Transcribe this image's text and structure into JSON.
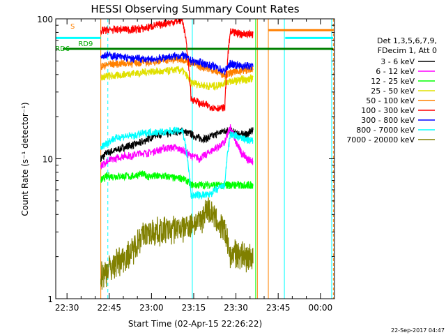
{
  "chart_data": {
    "type": "line",
    "title": "HESSI Observing Summary Count Rates",
    "xlabel": "Start Time (02-Apr-15 22:26:22)",
    "ylabel": "Count Rate (s⁻¹ detector⁻¹)",
    "y_scale": "log",
    "ylim": [
      1,
      100
    ],
    "xlim_minutes_after_2230": [
      -4,
      95
    ],
    "x_tick_labels": [
      "22:30",
      "22:45",
      "23:00",
      "23:15",
      "23:30",
      "23:45",
      "00:00"
    ],
    "x_tick_minutes": [
      0,
      15,
      30,
      45,
      60,
      75,
      90
    ],
    "y_tick_labels": [
      "1",
      "10",
      "100"
    ],
    "y_tick_values": [
      1,
      10,
      100
    ],
    "legend_header": [
      "Det 1,3,5,6,7,9,",
      "FDecim 1, Att 0"
    ],
    "legend_placement": "right",
    "series": [
      {
        "name": "3 - 6 keV",
        "color": "#000000",
        "x": [
          12,
          14,
          17,
          20,
          23,
          26,
          29,
          32,
          35,
          38,
          41,
          44,
          47,
          50,
          53,
          56,
          58,
          60,
          62,
          64,
          66
        ],
        "y": [
          10,
          11,
          11.5,
          12,
          12.5,
          13,
          14,
          15,
          15,
          15.5,
          16,
          15,
          14,
          14,
          15,
          16,
          16,
          15,
          15,
          15,
          16
        ]
      },
      {
        "name": "6 - 12 keV",
        "color": "#ff00ff",
        "x": [
          12,
          14,
          17,
          20,
          23,
          26,
          29,
          32,
          35,
          38,
          41,
          44,
          47,
          50,
          53,
          56,
          58,
          60,
          62,
          64,
          66
        ],
        "y": [
          9,
          9.5,
          10,
          10.5,
          10.5,
          11,
          11,
          11.5,
          12,
          12,
          11.5,
          10.5,
          10,
          11,
          12,
          13,
          17,
          13,
          11,
          10,
          9.5
        ]
      },
      {
        "name": "12 - 25 keV",
        "color": "#00ff00",
        "x": [
          12,
          14,
          17,
          20,
          23,
          26,
          29,
          32,
          35,
          38,
          41,
          44,
          47,
          50,
          53,
          56,
          58,
          60,
          62,
          64,
          66
        ],
        "y": [
          7,
          7.5,
          7.5,
          7.5,
          7.5,
          7.8,
          7.5,
          7.5,
          7.5,
          7.3,
          7.3,
          6.5,
          6.5,
          6.5,
          6.5,
          6.5,
          6.5,
          6.5,
          6.5,
          6.5,
          6.5
        ]
      },
      {
        "name": "25 - 50 keV",
        "color": "#e0e000",
        "x": [
          12,
          14,
          17,
          20,
          23,
          26,
          29,
          32,
          35,
          38,
          41,
          44,
          47,
          50,
          53,
          56,
          58,
          60,
          62,
          64,
          66
        ],
        "y": [
          38,
          39,
          39,
          40,
          41,
          41,
          42,
          42,
          42,
          43,
          43,
          35,
          34,
          33,
          33,
          35,
          36,
          36,
          37,
          37,
          38
        ]
      },
      {
        "name": "50 - 100 keV",
        "color": "#ff8000",
        "x": [
          12,
          14,
          17,
          20,
          23,
          26,
          29,
          32,
          35,
          38,
          41,
          44,
          47,
          50,
          53,
          56,
          58,
          60,
          62,
          64,
          66
        ],
        "y": [
          46,
          47,
          48,
          48,
          48,
          49,
          49,
          50,
          51,
          51,
          52,
          48,
          46,
          44,
          42,
          40,
          41,
          42,
          43,
          43,
          44
        ]
      },
      {
        "name": "100 - 300 keV",
        "color": "#ff0000",
        "x": [
          12,
          14,
          17,
          20,
          23,
          26,
          29,
          32,
          35,
          38,
          41,
          44,
          47,
          50,
          53,
          56,
          58,
          60,
          62,
          64,
          66
        ],
        "y": [
          82,
          83,
          84,
          84,
          84,
          85,
          87,
          90,
          93,
          95,
          98,
          27,
          25,
          24,
          23,
          23,
          80,
          79,
          78,
          78,
          78
        ]
      },
      {
        "name": "300 - 800 keV",
        "color": "#0000ff",
        "x": [
          12,
          14,
          17,
          20,
          23,
          26,
          29,
          32,
          35,
          38,
          41,
          44,
          47,
          50,
          53,
          56,
          58,
          60,
          62,
          64,
          66
        ],
        "y": [
          55,
          55,
          54,
          53,
          52,
          52,
          51,
          52,
          53,
          54,
          55,
          50,
          49,
          47,
          45,
          42,
          48,
          47,
          46,
          46,
          46
        ]
      },
      {
        "name": "800 - 7000 keV",
        "color": "#00ffff",
        "x": [
          12,
          14,
          17,
          20,
          23,
          26,
          29,
          32,
          35,
          38,
          41,
          44,
          47,
          50,
          53,
          56,
          58,
          60,
          62,
          64,
          66
        ],
        "y": [
          12,
          13,
          14,
          14.5,
          14.5,
          15,
          15.5,
          15.5,
          15.5,
          16,
          16,
          5.5,
          5.5,
          5.5,
          6,
          6.5,
          15,
          14.5,
          14,
          13.5,
          13.5
        ]
      },
      {
        "name": "7000 - 20000 keV",
        "color": "#808000",
        "x": [
          12,
          14,
          17,
          20,
          23,
          26,
          29,
          32,
          35,
          38,
          41,
          44,
          47,
          50,
          53,
          56,
          58,
          60,
          62,
          64,
          66
        ],
        "y": [
          1.5,
          1.6,
          1.8,
          2.0,
          2.2,
          2.8,
          3.0,
          3.1,
          3.1,
          3.2,
          3.2,
          3.5,
          3.6,
          4.5,
          3.6,
          3.0,
          2.0,
          2.2,
          2.1,
          2.0,
          2.0
        ]
      }
    ],
    "annotations": [
      {
        "text": "S",
        "color": "#ff8000",
        "x": 1.2,
        "y": 85
      },
      {
        "text": "RD6",
        "color": "#00aa00",
        "x": -4.2,
        "y": 59
      },
      {
        "text": "RD9",
        "color": "#00aa00",
        "x": 4.0,
        "y": 64
      }
    ],
    "timestamp": "22-Sep-2017 04:47"
  }
}
